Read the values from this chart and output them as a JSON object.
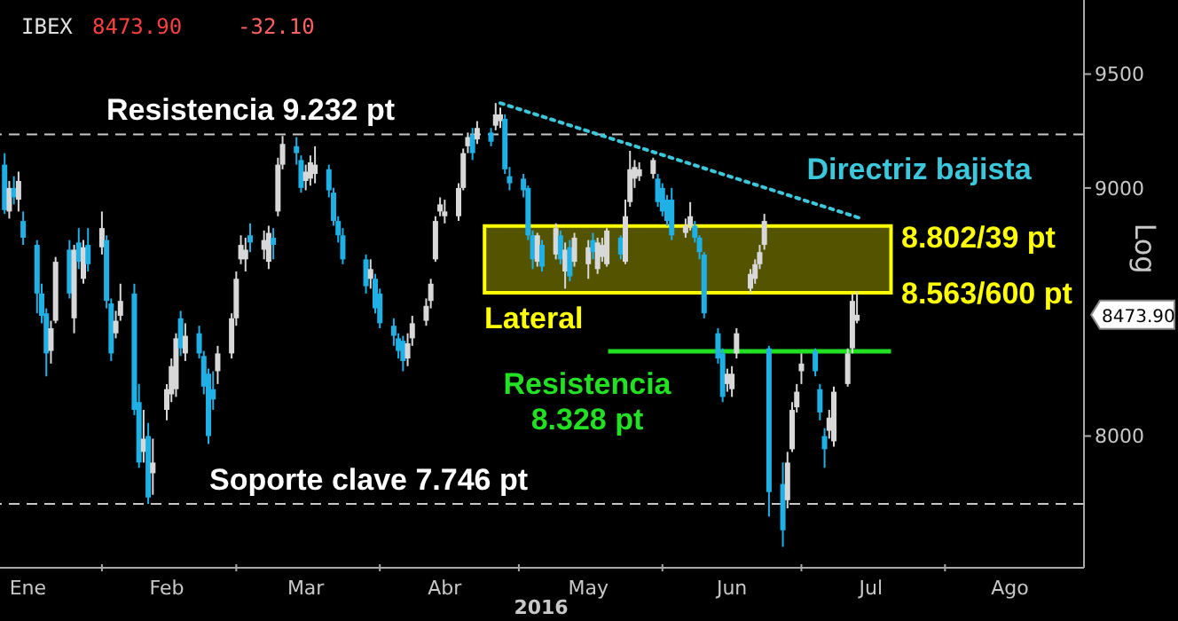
{
  "chart_data": {
    "type": "candlestick",
    "title": "IBEX",
    "xlabel": "2016",
    "annotations": [
      "8473.90",
      "-32.10",
      "8473.90",
      "8.802/39 pt",
      "8.563/600 pt",
      "Log"
    ],
    "xlim": [
      "2016-01-10",
      "2016-08-31"
    ],
    "xticks": [
      {
        "value": "2016-01-16",
        "label": "Ene"
      },
      {
        "value": "2016-02-01",
        "label": null
      },
      {
        "value": "2016-02-15",
        "label": "Feb"
      },
      {
        "value": "2016-03-01",
        "label": null
      },
      {
        "value": "2016-03-16",
        "label": "Mar"
      },
      {
        "value": "2016-04-01",
        "label": null
      },
      {
        "value": "2016-04-15",
        "label": "Abr"
      },
      {
        "value": "2016-05-01",
        "label": null
      },
      {
        "value": "2016-05-16",
        "label": "May"
      },
      {
        "value": "2016-06-01",
        "label": null
      },
      {
        "value": "2016-06-16",
        "label": "Jun"
      },
      {
        "value": "2016-07-01",
        "label": null
      },
      {
        "value": "2016-07-16",
        "label": "Jul"
      },
      {
        "value": "2016-08-01",
        "label": null
      },
      {
        "value": "2016-08-15",
        "label": "Ago"
      }
    ],
    "ylim": [
      7515,
      9840
    ],
    "yticks": [
      8000,
      9000,
      9500
    ],
    "log": true,
    "ref_lines": [
      {
        "axis": "y",
        "value": 9232,
        "label": "Resistencia 9.232 pt",
        "color": "#c8c8c8",
        "line_style": "dashed"
      },
      {
        "axis": "y",
        "value": 7746,
        "label": "Soporte clave 7.746 pt",
        "color": "#c8c8c8",
        "line_style": "dashed"
      },
      {
        "axis": "y",
        "value": 8328,
        "label": "Resistencia 8.328 pt",
        "color": "#22e022",
        "line_style": "solid"
      }
    ],
    "bands": [
      {
        "axis": "y",
        "from": 8563,
        "to": 8839,
        "label": "Lateral",
        "color": "#ffff00"
      }
    ],
    "series": [
      {
        "colors": [
          "#1fb0e6",
          "#d8d8d8",
          "#1fb0e6",
          "#d8d8d8",
          "#1fb0e6",
          "#1fb0e6",
          "#1fb0e6",
          "#1fb0e6",
          "#d8d8d8",
          "#d8d8d8",
          "#1fb0e6",
          "#d8d8d8",
          "#1fb0e6",
          "#d8d8d8",
          "#1fb0e6",
          "#d8d8d8",
          "#1fb0e6",
          "#1fb0e6",
          "#d8d8d8",
          "#d8d8d8",
          "#1fb0e6",
          "#1fb0e6",
          "#d8d8d8",
          "#1fb0e6",
          "#d8d8d8",
          "#d8d8d8",
          "#d8d8d8",
          "#d8d8d8",
          "#1fb0e6",
          "#d8d8d8",
          "#1fb0e6",
          "#1fb0e6",
          "#1fb0e6",
          "#1fb0e6",
          "#d8d8d8",
          "#d8d8d8",
          "#d8d8d8",
          "#d8d8d8",
          "#d8d8d8",
          "#1fb0e6",
          "#d8d8d8",
          "#d8d8d8",
          "#1fb0e6",
          "#d8d8d8",
          "#d8d8d8",
          "#1fb0e6",
          "#1fb0e6",
          "#d8d8d8",
          "#d8d8d8",
          "#d8d8d8",
          "#1fb0e6",
          "#1fb0e6",
          "#1fb0e6",
          "#1fb0e6",
          "#1fb0e6",
          "#d8d8d8",
          "#1fb0e6",
          "#1fb0e6",
          "#1fb0e6",
          "#1fb0e6",
          "#1fb0e6",
          "#d8d8d8",
          "#d8d8d8",
          "#d8d8d8",
          "#d8d8d8",
          "#d8d8d8",
          "#d8d8d8",
          "#d8d8d8",
          "#d8d8d8",
          "#d8d8d8",
          "#d8d8d8",
          "#1fb0e6",
          "#d8d8d8",
          "#1fb0e6",
          "#d8d8d8",
          "#d8d8d8",
          "#1fb0e6",
          "#1fb0e6",
          "#1fb0e6",
          "#1fb0e6",
          "#1fb0e6",
          "#d8d8d8",
          "#1fb0e6",
          "#d8d8d8",
          "#1fb0e6",
          "#d8d8d8",
          "#1fb0e6",
          "#d8d8d8",
          "#d8d8d8",
          "#1fb0e6",
          "#d8d8d8",
          "#d8d8d8",
          "#d8d8d8",
          "#1fb0e6",
          "#d8d8d8",
          "#d8d8d8",
          "#d8d8d8",
          "#d8d8d8",
          "#d8d8d8",
          "#1fb0e6",
          "#1fb0e6",
          "#1fb0e6",
          "#1fb0e6",
          "#d8d8d8",
          "#d8d8d8",
          "#1fb0e6",
          "#1fb0e6",
          "#1fb0e6",
          "#1fb0e6",
          "#1fb0e6",
          "#d8d8d8",
          "#d8d8d8",
          "#d8d8d8",
          "#d8d8d8",
          "#d8d8d8",
          "#d8d8d8",
          "#d8d8d8",
          "#1fb0e6",
          "#1fb0e6",
          "#d8d8d8",
          "#d8d8d8",
          "#d8d8d8",
          "#d8d8d8",
          "#1fb0e6",
          "#1fb0e6",
          "#1fb0e6",
          "#d8d8d8",
          "#d8d8d8",
          "#d8d8d8",
          "#d8d8d8",
          "#d8d8d8"
        ],
        "x": [
          "2016-01-11",
          "2016-01-12",
          "2016-01-13",
          "2016-01-14",
          "2016-01-15",
          "2016-01-18",
          "2016-01-19",
          "2016-01-20",
          "2016-01-21",
          "2016-01-22",
          "2016-01-25",
          "2016-01-26",
          "2016-01-27",
          "2016-01-28",
          "2016-01-29",
          "2016-02-01",
          "2016-02-02",
          "2016-02-03",
          "2016-02-04",
          "2016-02-05",
          "2016-02-08",
          "2016-02-09",
          "2016-02-10",
          "2016-02-11",
          "2016-02-12",
          "2016-02-15",
          "2016-02-16",
          "2016-02-17",
          "2016-02-18",
          "2016-02-19",
          "2016-02-22",
          "2016-02-23",
          "2016-02-24",
          "2016-02-25",
          "2016-02-26",
          "2016-02-29",
          "2016-03-01",
          "2016-03-02",
          "2016-03-03",
          "2016-03-04",
          "2016-03-07",
          "2016-03-08",
          "2016-03-09",
          "2016-03-10",
          "2016-03-11",
          "2016-03-14",
          "2016-03-15",
          "2016-03-16",
          "2016-03-17",
          "2016-03-18",
          "2016-03-21",
          "2016-03-22",
          "2016-03-23",
          "2016-03-24",
          "2016-03-29",
          "2016-03-30",
          "2016-03-31",
          "2016-04-01",
          "2016-04-04",
          "2016-04-05",
          "2016-04-06",
          "2016-04-07",
          "2016-04-08",
          "2016-04-11",
          "2016-04-12",
          "2016-04-13",
          "2016-04-14",
          "2016-04-15",
          "2016-04-18",
          "2016-04-19",
          "2016-04-20",
          "2016-04-21",
          "2016-04-22",
          "2016-04-25",
          "2016-04-26",
          "2016-04-27",
          "2016-04-28",
          "2016-04-29",
          "2016-05-02",
          "2016-05-03",
          "2016-05-04",
          "2016-05-05",
          "2016-05-06",
          "2016-05-09",
          "2016-05-10",
          "2016-05-11",
          "2016-05-12",
          "2016-05-13",
          "2016-05-16",
          "2016-05-17",
          "2016-05-18",
          "2016-05-19",
          "2016-05-20",
          "2016-05-23",
          "2016-05-24",
          "2016-05-25",
          "2016-05-26",
          "2016-05-27",
          "2016-05-30",
          "2016-05-31",
          "2016-06-01",
          "2016-06-02",
          "2016-06-03",
          "2016-06-06",
          "2016-06-07",
          "2016-06-08",
          "2016-06-09",
          "2016-06-10",
          "2016-06-13",
          "2016-06-14",
          "2016-06-15",
          "2016-06-16",
          "2016-06-17",
          "2016-06-20",
          "2016-06-21",
          "2016-06-22",
          "2016-06-23",
          "2016-06-24",
          "2016-06-27",
          "2016-06-28",
          "2016-06-29",
          "2016-06-30",
          "2016-07-01",
          "2016-07-04",
          "2016-07-05",
          "2016-07-06",
          "2016-07-07",
          "2016-07-08",
          "2016-07-11",
          "2016-07-12",
          "2016-07-13"
        ],
        "ohlc": [
          [
            9100,
            9150,
            8890,
            8906
          ],
          [
            8900,
            9030,
            8870,
            9000
          ],
          [
            9000,
            9050,
            8930,
            8960
          ],
          [
            8950,
            9070,
            8900,
            9030
          ],
          [
            8860,
            8900,
            8760,
            8790
          ],
          [
            8760,
            8780,
            8480,
            8560
          ],
          [
            8560,
            8600,
            8440,
            8470
          ],
          [
            8480,
            8500,
            8230,
            8320
          ],
          [
            8330,
            8450,
            8280,
            8420
          ],
          [
            8450,
            8710,
            8440,
            8690
          ],
          [
            8740,
            8780,
            8540,
            8560
          ],
          [
            8460,
            8760,
            8400,
            8740
          ],
          [
            8770,
            8830,
            8660,
            8690
          ],
          [
            8620,
            8780,
            8600,
            8750
          ],
          [
            8760,
            8830,
            8650,
            8680
          ],
          [
            8750,
            8900,
            8720,
            8830
          ],
          [
            8780,
            8800,
            8500,
            8530
          ],
          [
            8520,
            8540,
            8290,
            8320
          ],
          [
            8400,
            8490,
            8380,
            8450
          ],
          [
            8470,
            8600,
            8450,
            8530
          ],
          [
            8560,
            8600,
            8080,
            8100
          ],
          [
            8130,
            8200,
            7880,
            7900
          ],
          [
            7940,
            8100,
            7900,
            7990
          ],
          [
            8000,
            8050,
            7746,
            7770
          ],
          [
            7860,
            7990,
            7780,
            7900
          ],
          [
            8100,
            8200,
            8060,
            8180
          ],
          [
            8160,
            8300,
            8130,
            8270
          ],
          [
            8180,
            8400,
            8150,
            8380
          ],
          [
            8460,
            8490,
            8310,
            8340
          ],
          [
            8320,
            8440,
            8290,
            8390
          ],
          [
            8400,
            8430,
            8300,
            8320
          ],
          [
            8310,
            8330,
            8160,
            8190
          ],
          [
            8240,
            8260,
            7970,
            8000
          ],
          [
            8180,
            8250,
            8100,
            8140
          ],
          [
            8250,
            8350,
            8200,
            8320
          ],
          [
            8320,
            8480,
            8300,
            8460
          ],
          [
            8460,
            8650,
            8430,
            8620
          ],
          [
            8700,
            8800,
            8680,
            8760
          ],
          [
            8700,
            8790,
            8650,
            8740
          ],
          [
            8800,
            8850,
            8730,
            8770
          ],
          [
            8740,
            8820,
            8700,
            8780
          ],
          [
            8690,
            8840,
            8660,
            8810
          ],
          [
            8790,
            8830,
            8700,
            8760
          ],
          [
            8900,
            9130,
            8880,
            9100
          ],
          [
            9100,
            9225,
            9080,
            9190
          ],
          [
            9180,
            9220,
            9100,
            9150
          ],
          [
            9120,
            9140,
            8980,
            9000
          ],
          [
            9030,
            9100,
            8990,
            9070
          ],
          [
            9040,
            9140,
            9010,
            9110
          ],
          [
            9060,
            9180,
            9020,
            9100
          ],
          [
            9080,
            9100,
            8960,
            8990
          ],
          [
            8980,
            9000,
            8840,
            8860
          ],
          [
            8860,
            8880,
            8770,
            8800
          ],
          [
            8800,
            8830,
            8680,
            8700
          ],
          [
            8700,
            8720,
            8560,
            8590
          ],
          [
            8620,
            8700,
            8580,
            8660
          ],
          [
            8620,
            8640,
            8480,
            8500
          ],
          [
            8560,
            8580,
            8420,
            8440
          ],
          [
            8430,
            8460,
            8350,
            8390
          ],
          [
            8380,
            8400,
            8300,
            8330
          ],
          [
            8370,
            8390,
            8250,
            8290
          ],
          [
            8300,
            8400,
            8270,
            8360
          ],
          [
            8380,
            8470,
            8350,
            8440
          ],
          [
            8450,
            8540,
            8430,
            8510
          ],
          [
            8530,
            8620,
            8500,
            8600
          ],
          [
            8700,
            8880,
            8690,
            8860
          ],
          [
            8900,
            8960,
            8880,
            8930
          ],
          [
            8880,
            8950,
            8850,
            8900
          ],
          [
            8880,
            9020,
            8860,
            9000
          ],
          [
            9000,
            9170,
            8990,
            9150
          ],
          [
            9180,
            9240,
            9150,
            9220
          ],
          [
            9230,
            9260,
            9120,
            9150
          ],
          [
            9210,
            9290,
            9190,
            9260
          ],
          [
            9240,
            9260,
            9180,
            9200
          ],
          [
            9270,
            9370,
            9250,
            9320
          ],
          [
            9290,
            9350,
            9260,
            9320
          ],
          [
            9300,
            9320,
            9060,
            9080
          ],
          [
            9050,
            9090,
            8990,
            9020
          ],
          [
            9040,
            9060,
            8960,
            8990
          ],
          [
            9000,
            9010,
            8780,
            8800
          ],
          [
            8800,
            8820,
            8660,
            8700
          ],
          [
            8690,
            8810,
            8670,
            8800
          ],
          [
            8760,
            8780,
            8650,
            8670
          ],
          [
            8720,
            8850,
            8700,
            8830
          ],
          [
            8800,
            8820,
            8680,
            8700
          ],
          [
            8650,
            8770,
            8580,
            8740
          ],
          [
            8750,
            8780,
            8610,
            8630
          ],
          [
            8690,
            8810,
            8670,
            8790
          ],
          [
            8680,
            8780,
            8620,
            8750
          ],
          [
            8780,
            8810,
            8700,
            8730
          ],
          [
            8660,
            8790,
            8640,
            8770
          ],
          [
            8710,
            8790,
            8690,
            8760
          ],
          [
            8680,
            8830,
            8670,
            8820
          ],
          [
            8790,
            8800,
            8700,
            8720
          ],
          [
            8690,
            8950,
            8680,
            8880
          ],
          [
            8940,
            9160,
            8920,
            9080
          ],
          [
            9040,
            9120,
            9000,
            9090
          ],
          [
            9050,
            9110,
            9030,
            9080
          ],
          [
            9060,
            9130,
            9040,
            9120
          ],
          [
            9040,
            9060,
            8920,
            8940
          ],
          [
            9000,
            9020,
            8880,
            8900
          ],
          [
            8950,
            8970,
            8840,
            8860
          ],
          [
            8950,
            9000,
            8780,
            8800
          ],
          [
            8810,
            8870,
            8790,
            8840
          ],
          [
            8840,
            8940,
            8820,
            8880
          ],
          [
            8840,
            8860,
            8770,
            8790
          ],
          [
            8790,
            8800,
            8700,
            8730
          ],
          [
            8720,
            8730,
            8460,
            8480
          ],
          [
            8400,
            8420,
            8280,
            8300
          ],
          [
            8320,
            8340,
            8130,
            8150
          ],
          [
            8200,
            8260,
            8170,
            8240
          ],
          [
            8180,
            8270,
            8150,
            8240
          ],
          [
            8320,
            8420,
            8300,
            8400
          ],
          [
            8580,
            8660,
            8560,
            8640
          ],
          [
            8620,
            8700,
            8600,
            8680
          ],
          [
            8680,
            8760,
            8660,
            8730
          ],
          [
            8760,
            8890,
            8740,
            8860
          ],
          [
            8340,
            8350,
            7700,
            7790
          ],
          [
            7820,
            7900,
            7590,
            7650
          ],
          [
            7760,
            7940,
            7730,
            7900
          ],
          [
            7950,
            8130,
            7940,
            8100
          ],
          [
            8110,
            8200,
            8090,
            8170
          ],
          [
            8250,
            8320,
            8200,
            8280
          ],
          [
            8330,
            8340,
            8230,
            8250
          ],
          [
            8180,
            8200,
            8060,
            8090
          ],
          [
            8000,
            8030,
            7880,
            7950
          ],
          [
            8020,
            8100,
            7990,
            8070
          ],
          [
            7980,
            8190,
            7960,
            8170
          ],
          [
            8200,
            8340,
            8190,
            8320
          ],
          [
            8340,
            8560,
            8320,
            8530
          ],
          [
            8450,
            8570,
            8440,
            8473.9
          ]
        ]
      },
      {
        "type": "line",
        "name": "Directriz bajista",
        "color": "#3cc8dc",
        "line_style": "dotted",
        "marker": "none",
        "x": [
          "2016-04-27",
          "2016-07-14"
        ],
        "values": [
          9370,
          8870
        ]
      }
    ]
  }
}
